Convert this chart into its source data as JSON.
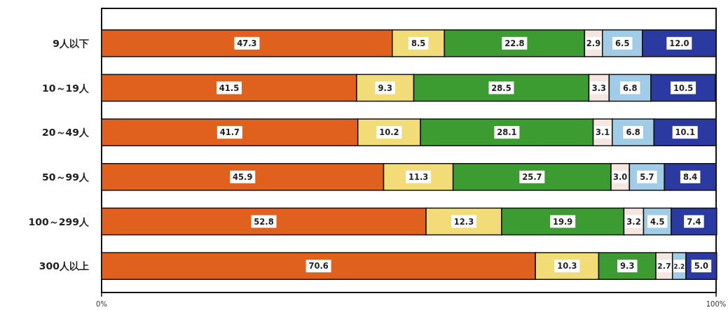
{
  "chart_data": {
    "type": "bar",
    "orientation": "horizontal",
    "stacked": true,
    "categories": [
      "9人以下",
      "10～19人",
      "20～49人",
      "50～99人",
      "100～299人",
      "300人以上"
    ],
    "xlim": [
      0,
      100
    ],
    "xticks": [
      {
        "value": 0,
        "label": "0%"
      },
      {
        "value": 100,
        "label": "100%"
      }
    ],
    "series": [
      {
        "color": "#e0601e",
        "values": [
          47.3,
          41.5,
          41.7,
          45.9,
          52.8,
          70.6
        ],
        "value_labels": [
          "47.3",
          "41.5",
          "41.7",
          "45.9",
          "52.8",
          "70.6"
        ]
      },
      {
        "color": "#f2dc78",
        "values": [
          8.5,
          9.3,
          10.2,
          11.3,
          12.3,
          10.3
        ],
        "value_labels": [
          "8.5",
          "9.3",
          "10.2",
          "11.3",
          "12.3",
          "10.3"
        ]
      },
      {
        "color": "#3c9c32",
        "values": [
          22.8,
          28.5,
          28.1,
          25.7,
          19.9,
          9.3
        ],
        "value_labels": [
          "22.8",
          "28.5",
          "28.1",
          "25.7",
          "19.9",
          "9.3"
        ]
      },
      {
        "color": "#f6e6e0",
        "values": [
          2.9,
          3.3,
          3.1,
          3.0,
          3.2,
          2.7
        ],
        "value_labels": [
          "2.9",
          "3.3",
          "3.1",
          "3.0",
          "3.2",
          "2.7"
        ]
      },
      {
        "color": "#a0cce8",
        "values": [
          6.5,
          6.8,
          6.8,
          5.7,
          4.5,
          2.2
        ],
        "value_labels": [
          "6.5",
          "6.8",
          "6.8",
          "5.7",
          "4.5",
          "2.2"
        ]
      },
      {
        "color": "#2a3aa0",
        "values": [
          12.0,
          10.5,
          10.1,
          8.4,
          7.4,
          5.0
        ],
        "value_labels": [
          "12.0",
          "10.5",
          "10.1",
          "8.4",
          "7.4",
          "5.0"
        ]
      }
    ]
  }
}
